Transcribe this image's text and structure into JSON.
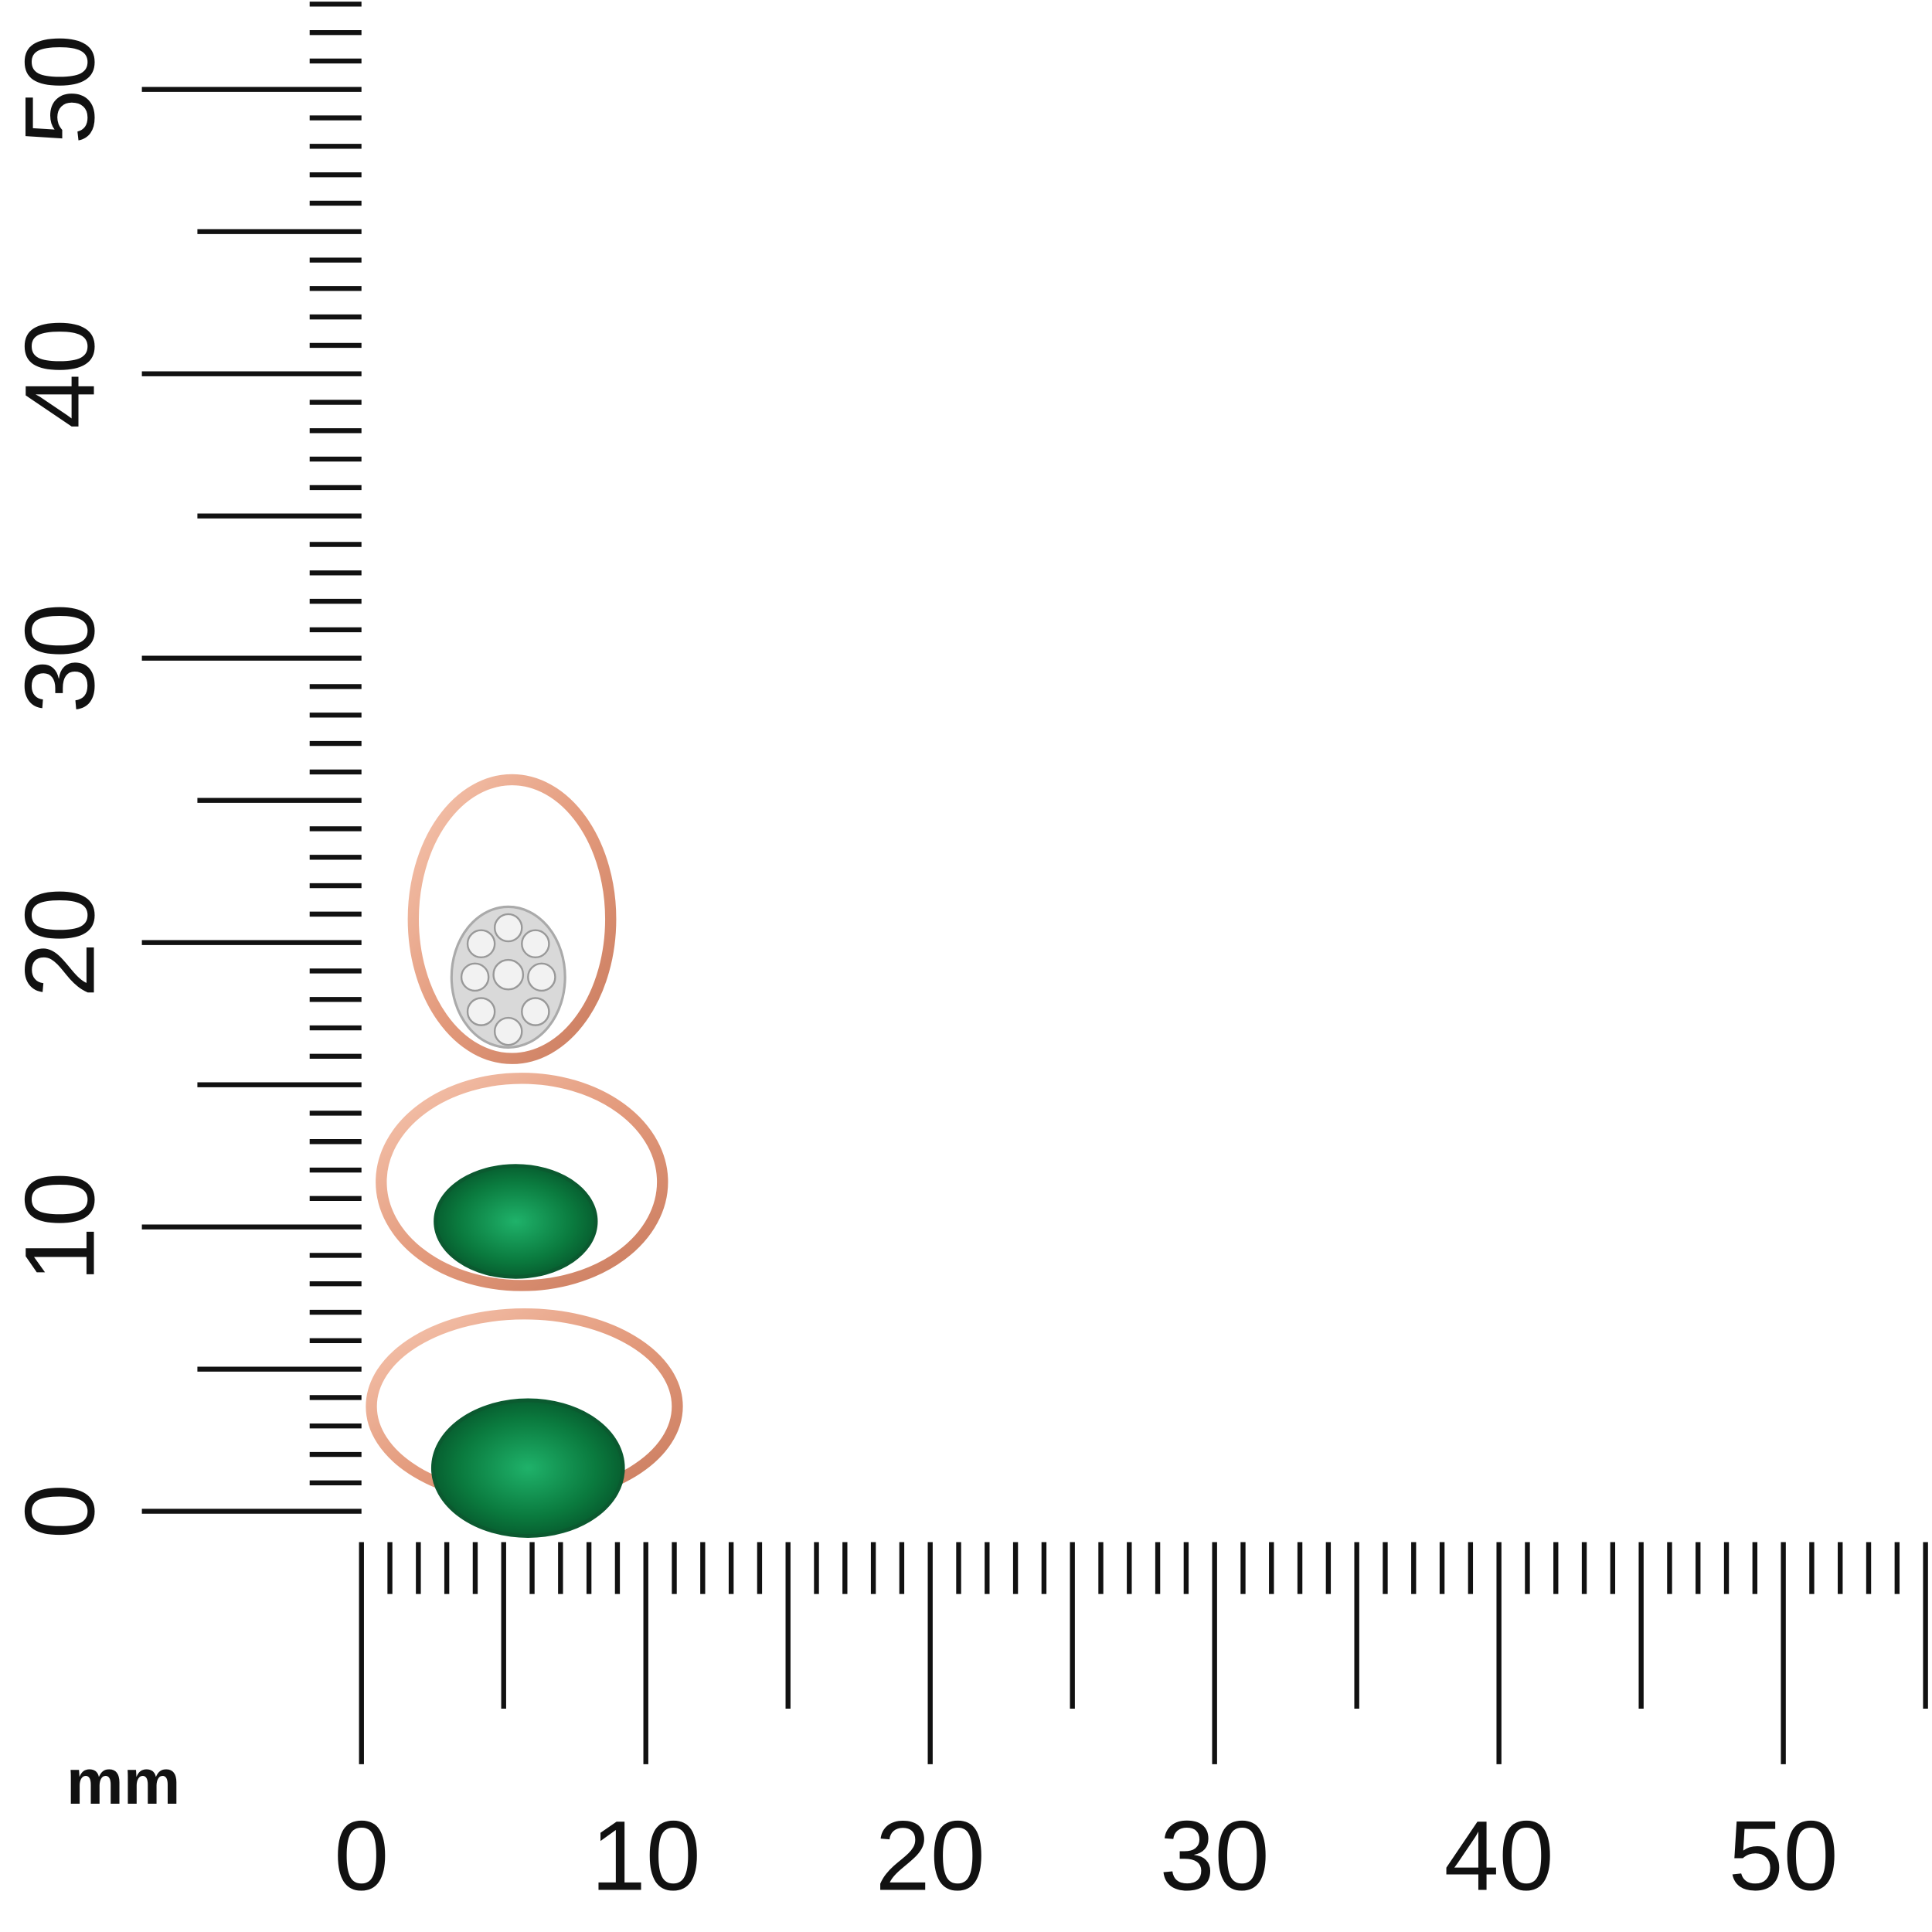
{
  "unit": "mm",
  "x_ruler": {
    "labels": [
      "0",
      "10",
      "20",
      "30",
      "40",
      "50"
    ]
  },
  "y_ruler": {
    "labels": [
      "0",
      "10",
      "20",
      "30",
      "40",
      "50"
    ]
  }
}
